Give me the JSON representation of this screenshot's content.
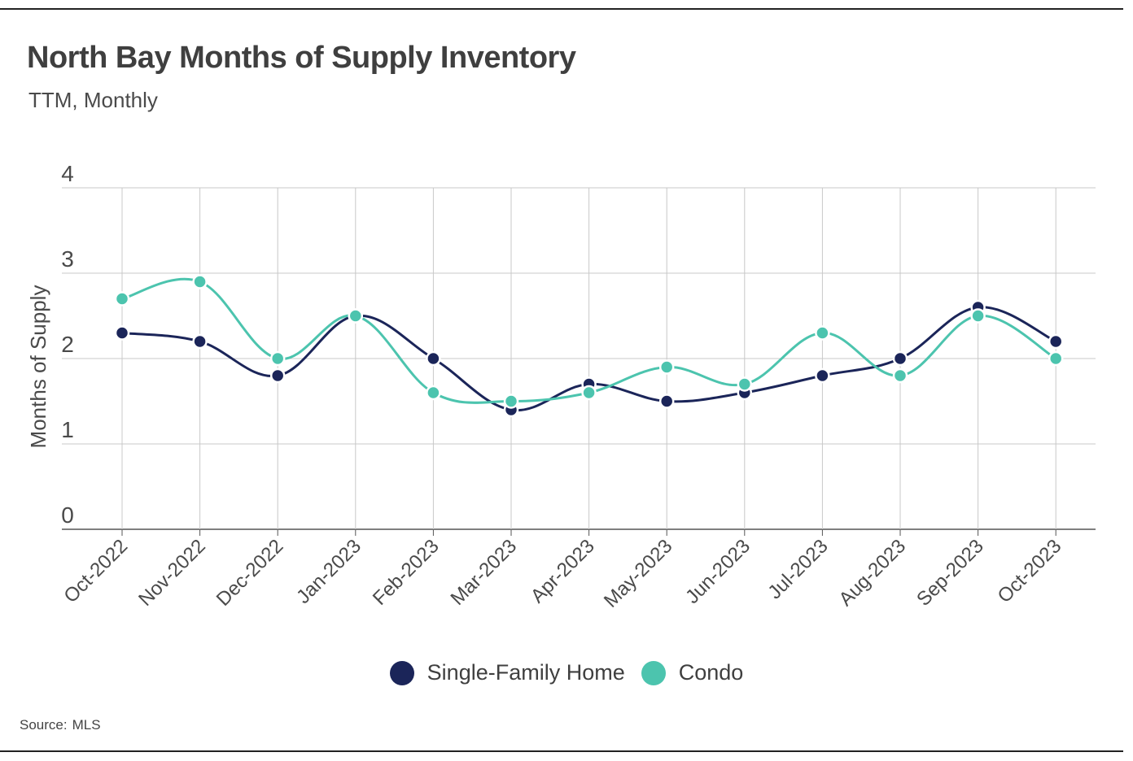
{
  "header": {
    "title": "North Bay Months of Supply Inventory",
    "subtitle": "TTM, Monthly"
  },
  "footer": {
    "source_label": "Source:",
    "source_value": "MLS"
  },
  "colors": {
    "single_family": "#1b2559",
    "condo": "#4cc4ae",
    "grid": "#c8c8c8",
    "axis": "#555555"
  },
  "chart_data": {
    "type": "line",
    "title": "North Bay Months of Supply Inventory",
    "subtitle": "TTM, Monthly",
    "xlabel": "",
    "ylabel": "Months of Supply",
    "ylim": [
      0,
      4
    ],
    "yticks": [
      0,
      1,
      2,
      3,
      4
    ],
    "grid": true,
    "legend_position": "bottom",
    "categories": [
      "Oct-2022",
      "Nov-2022",
      "Dec-2022",
      "Jan-2023",
      "Feb-2023",
      "Mar-2023",
      "Apr-2023",
      "May-2023",
      "Jun-2023",
      "Jul-2023",
      "Aug-2023",
      "Sep-2023",
      "Oct-2023"
    ],
    "series": [
      {
        "name": "Single-Family Home",
        "color": "#1b2559",
        "values": [
          2.3,
          2.2,
          1.8,
          2.5,
          2.0,
          1.4,
          1.7,
          1.5,
          1.6,
          1.8,
          2.0,
          2.6,
          2.2
        ]
      },
      {
        "name": "Condo",
        "color": "#4cc4ae",
        "values": [
          2.7,
          2.9,
          2.0,
          2.5,
          1.6,
          1.5,
          1.6,
          1.9,
          1.7,
          2.3,
          1.8,
          2.5,
          2.0
        ]
      }
    ]
  }
}
